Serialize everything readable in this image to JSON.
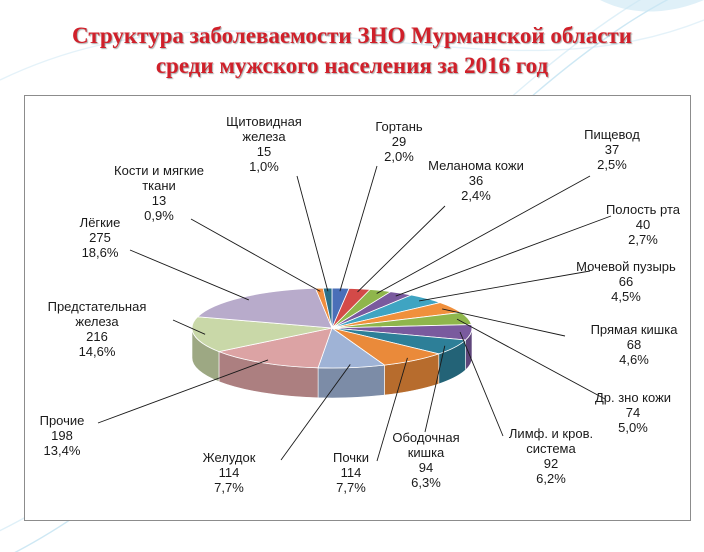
{
  "title": {
    "line1": "Структура заболеваемости ЗНО Мурманской области",
    "line2": "среди мужского населения за 2016 год"
  },
  "colors": {
    "title": "#d0202a",
    "background_swirl": "#c9e6f3",
    "frame_border": "#8c8c8c",
    "leader_line": "#1a1a1a"
  },
  "chart_data": {
    "type": "pie",
    "style": "3d-exploded",
    "title": "Структура заболеваемости ЗНО Мурманской области среди мужского населения за 2016 год",
    "legend": "none",
    "slices": [
      {
        "name_lines": [
          "Гортань"
        ],
        "value": 29,
        "percent": "2,0%",
        "color": "#4a6fb8"
      },
      {
        "name_lines": [
          "Меланома кожи"
        ],
        "value": 36,
        "percent": "2,4%",
        "color": "#d34a48"
      },
      {
        "name_lines": [
          "Пищевод"
        ],
        "value": 37,
        "percent": "2,5%",
        "color": "#8fb64c"
      },
      {
        "name_lines": [
          "Полость рта"
        ],
        "value": 40,
        "percent": "2,7%",
        "color": "#7a5a9e"
      },
      {
        "name_lines": [
          "Мочевой пузырь"
        ],
        "value": 66,
        "percent": "4,5%",
        "color": "#3fa4c2"
      },
      {
        "name_lines": [
          "Прямая кишка"
        ],
        "value": 68,
        "percent": "4,6%",
        "color": "#f0903c"
      },
      {
        "name_lines": [
          "Др. зно кожи"
        ],
        "value": 74,
        "percent": "5,0%",
        "color": "#8fb64c"
      },
      {
        "name_lines": [
          "Лимф. и кров.",
          "система"
        ],
        "value": 92,
        "percent": "6,2%",
        "color": "#7a5a9e"
      },
      {
        "name_lines": [
          "Ободочная",
          "кишка"
        ],
        "value": 94,
        "percent": "6,3%",
        "color": "#2d7f98"
      },
      {
        "name_lines": [
          "Почки"
        ],
        "value": 114,
        "percent": "7,7%",
        "color": "#ea8a3a"
      },
      {
        "name_lines": [
          "Желудок"
        ],
        "value": 114,
        "percent": "7,7%",
        "color": "#9fb3d6"
      },
      {
        "name_lines": [
          "Прочие"
        ],
        "value": 198,
        "percent": "13,4%",
        "color": "#dca3a4"
      },
      {
        "name_lines": [
          "Предстательная",
          "железа"
        ],
        "value": 216,
        "percent": "14,6%",
        "color": "#c9d8a8"
      },
      {
        "name_lines": [
          "Лёгкие"
        ],
        "value": 275,
        "percent": "18,6%",
        "color": "#b8abcb"
      },
      {
        "name_lines": [
          "Кости и мягкие",
          "ткани"
        ],
        "value": 13,
        "percent": "0,9%",
        "color": "#ee8d3e"
      },
      {
        "name_lines": [
          "Щитовидная",
          "железа"
        ],
        "value": 15,
        "percent": "1,0%",
        "color": "#2a6f88"
      }
    ]
  }
}
